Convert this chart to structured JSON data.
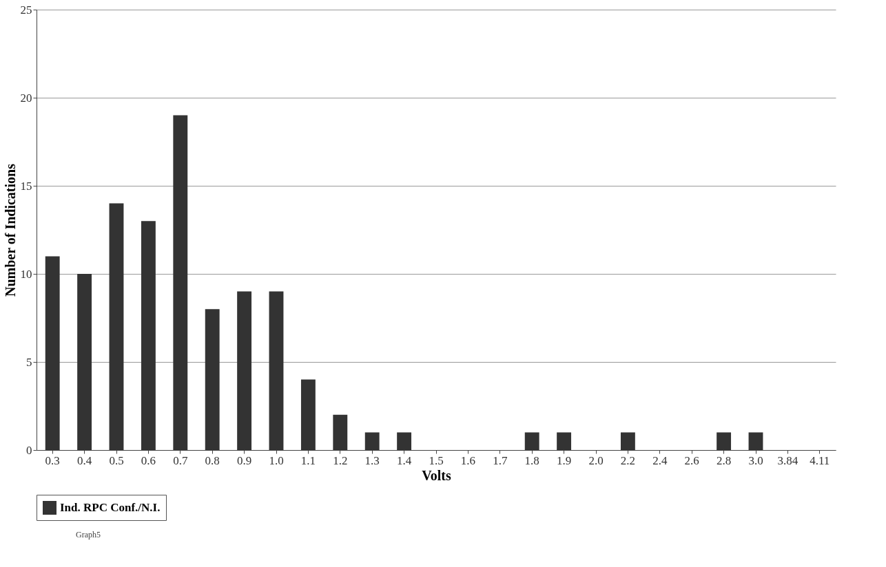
{
  "chart_data": {
    "type": "bar",
    "xlabel": "Volts",
    "ylabel": "Number of Indications",
    "categories": [
      "0.3",
      "0.4",
      "0.5",
      "0.6",
      "0.7",
      "0.8",
      "0.9",
      "1.0",
      "1.1",
      "1.2",
      "1.3",
      "1.4",
      "1.5",
      "1.6",
      "1.7",
      "1.8",
      "1.9",
      "2.0",
      "2.2",
      "2.4",
      "2.6",
      "2.8",
      "3.0",
      "3.84",
      "4.11"
    ],
    "series": [
      {
        "name": "Ind. RPC Conf./N.I.",
        "color": "#333333",
        "values": [
          11,
          10,
          14,
          13,
          19,
          8,
          9,
          9,
          4,
          2,
          1,
          1,
          0,
          0,
          0,
          1,
          1,
          0,
          1,
          0,
          0,
          1,
          1,
          0,
          0
        ]
      }
    ],
    "ylim": [
      0,
      25
    ],
    "yticks": [
      0,
      5,
      10,
      15,
      20,
      25
    ],
    "grid": "y",
    "legend": "bottom",
    "annotations": [
      "Graph5"
    ]
  }
}
